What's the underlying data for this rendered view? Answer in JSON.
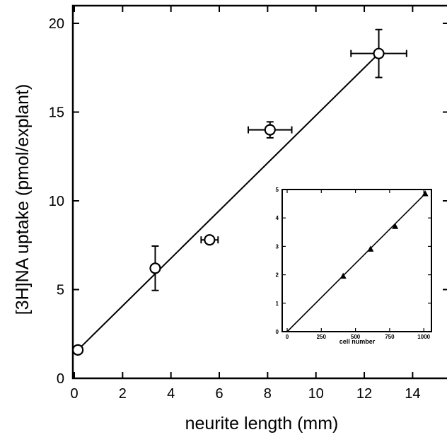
{
  "chart_data": [
    {
      "type": "scatter",
      "title": "",
      "xlabel": "neurite length (mm)",
      "ylabel": "[3H]NA uptake (pmol/explant)",
      "xlim": [
        0,
        15
      ],
      "ylim": [
        0,
        21
      ],
      "xticks": [
        0,
        2,
        4,
        6,
        8,
        10,
        12,
        14
      ],
      "yticks": [
        0,
        5,
        10,
        15,
        20
      ],
      "grid": false,
      "marker": "open-circle",
      "points": [
        {
          "x": 0.15,
          "y": 1.6,
          "xerr": 0,
          "yerr": 0
        },
        {
          "x": 3.35,
          "y": 6.2,
          "xerr": 0,
          "yerr": 1.25
        },
        {
          "x": 5.6,
          "y": 7.8,
          "xerr": 0.35,
          "yerr": 0
        },
        {
          "x": 8.1,
          "y": 14.0,
          "xerr": 0.9,
          "yerr": 0.45
        },
        {
          "x": 12.6,
          "y": 18.3,
          "xerr": 1.15,
          "yerr": 1.35
        }
      ],
      "fit_line": [
        [
          0.15,
          1.6
        ],
        [
          12.6,
          18.3
        ]
      ]
    },
    {
      "type": "line",
      "role": "inset",
      "title": "",
      "xlabel": "cell number",
      "ylabel": "",
      "xlim": [
        0,
        1100
      ],
      "ylim": [
        0,
        5
      ],
      "xticks": [
        0,
        250,
        500,
        750,
        1000
      ],
      "yticks": [
        0,
        1,
        2,
        3,
        4,
        5
      ],
      "grid": false,
      "marker": "filled-triangle",
      "points": [
        {
          "x": 410,
          "y": 1.95
        },
        {
          "x": 610,
          "y": 2.9
        },
        {
          "x": 790,
          "y": 3.7
        },
        {
          "x": 1010,
          "y": 4.85
        }
      ],
      "fit_line": [
        [
          0,
          0
        ],
        [
          1010,
          4.85
        ]
      ]
    }
  ]
}
